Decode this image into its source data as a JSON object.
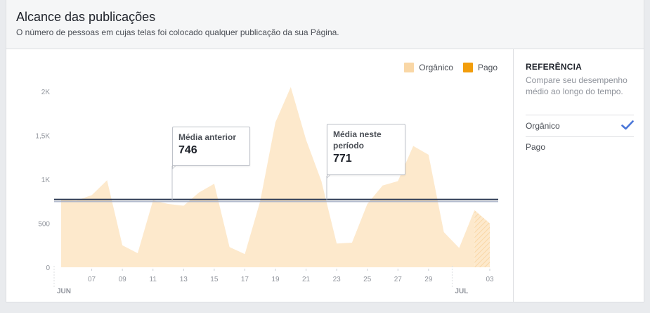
{
  "header": {
    "title": "Alcance das publicações",
    "subtitle": "O número de pessoas em cujas telas foi colocado qualquer publicação da sua Página."
  },
  "legend": {
    "organic_label": "Orgânico",
    "paid_label": "Pago"
  },
  "callouts": {
    "previous_label": "Média anterior",
    "previous_value": "746",
    "current_label": "Média neste período",
    "current_value": "771"
  },
  "side_panel": {
    "heading": "REFERÊNCIA",
    "description": "Compare seu desempenho médio ao longo do tempo.",
    "options": [
      {
        "label": "Orgânico",
        "selected": true
      },
      {
        "label": "Pago",
        "selected": false
      }
    ]
  },
  "colors": {
    "organic": "#f9d7a6",
    "organic_fill": "#fde9cc",
    "paid": "#f29d0b",
    "average_line": "#2e3b55",
    "check": "#4a76d8"
  },
  "icons": {
    "check": "check-icon"
  },
  "chart_data": {
    "type": "area",
    "title": "Alcance das publicações",
    "xlabel": "",
    "ylabel": "",
    "ylim": [
      0,
      2000
    ],
    "yticks": [
      0,
      500,
      1000,
      1500,
      2000
    ],
    "ytick_labels": [
      "0",
      "500",
      "1K",
      "1,5K",
      "2K"
    ],
    "x_day_ticks": [
      "07",
      "09",
      "11",
      "13",
      "15",
      "17",
      "19",
      "21",
      "23",
      "25",
      "27",
      "29",
      "03"
    ],
    "month_labels": [
      {
        "label": "JUN",
        "day": 5
      },
      {
        "label": "JUL",
        "day": 31
      }
    ],
    "x": [
      5,
      6,
      7,
      8,
      9,
      10,
      11,
      12,
      13,
      14,
      15,
      16,
      17,
      18,
      19,
      20,
      21,
      22,
      23,
      24,
      25,
      26,
      27,
      28,
      29,
      30,
      31,
      32,
      33
    ],
    "series": [
      {
        "name": "Orgânico",
        "values": [
          770,
          760,
          820,
          990,
          250,
          160,
          760,
          720,
          700,
          850,
          950,
          230,
          150,
          750,
          1650,
          2050,
          1450,
          980,
          270,
          280,
          720,
          930,
          980,
          1380,
          1280,
          400,
          220,
          650,
          500
        ]
      },
      {
        "name": "Pago",
        "values": [
          0,
          0,
          0,
          0,
          0,
          0,
          0,
          0,
          0,
          0,
          0,
          0,
          0,
          0,
          0,
          0,
          0,
          0,
          0,
          0,
          0,
          0,
          0,
          0,
          0,
          0,
          0,
          0,
          0
        ]
      }
    ],
    "reference_lines": [
      {
        "name": "Média anterior",
        "value": 746
      },
      {
        "name": "Média neste período",
        "value": 771
      }
    ],
    "grid": false,
    "legend_position": "top-right"
  }
}
